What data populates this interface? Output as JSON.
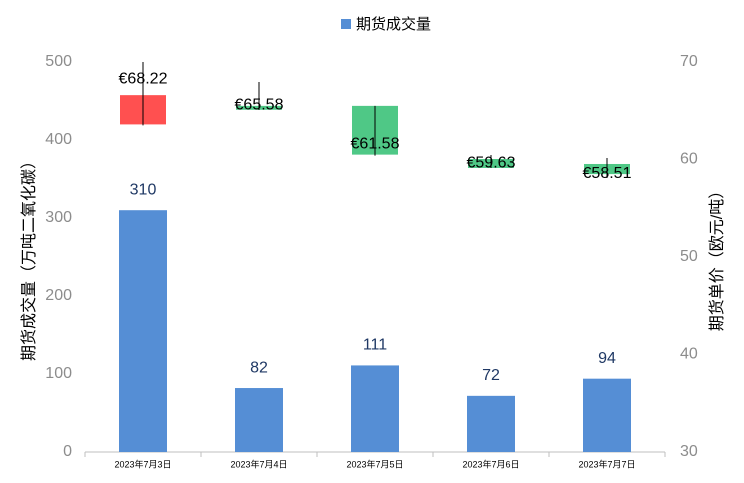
{
  "chart_data": {
    "type": "bar",
    "categories": [
      "2023年7月3日",
      "2023年7月4日",
      "2023年7月5日",
      "2023年7月6日",
      "2023年7月7日"
    ],
    "y_label": "期货成交量（万吨二氧化碳）",
    "y2_label": "期货单价（欧元/吨）",
    "ylim": [
      0,
      500
    ],
    "yticks": [
      0,
      100,
      200,
      300,
      400,
      500
    ],
    "y2lim": [
      30,
      70
    ],
    "y2ticks": [
      30,
      40,
      50,
      60,
      70
    ],
    "legend": "top",
    "series": [
      {
        "name": "期货成交量",
        "type": "bar",
        "color": "#558ed5",
        "values": [
          310,
          82,
          111,
          72,
          94
        ]
      },
      {
        "type": "candlestick",
        "axis": "y2",
        "up_color": "#ff5050",
        "down_color": "#4fc886",
        "open": [
          63.6,
          65.5,
          65.5,
          60.05,
          59.54
        ],
        "close": [
          66.6,
          65.1,
          60.5,
          59.13,
          58.5
        ],
        "high": [
          70,
          67.95,
          65.5,
          60.46,
          60.15
        ],
        "low": [
          63.5,
          65.08,
          60.4,
          59.13,
          58.1
        ],
        "labels": {
          "values": [
            68.22,
            65.58,
            61.58,
            59.63,
            58.51
          ],
          "value_labels": [
            "€68.22",
            "€65.58",
            "€61.58",
            "€59.63",
            "€58.51"
          ]
        }
      }
    ]
  }
}
